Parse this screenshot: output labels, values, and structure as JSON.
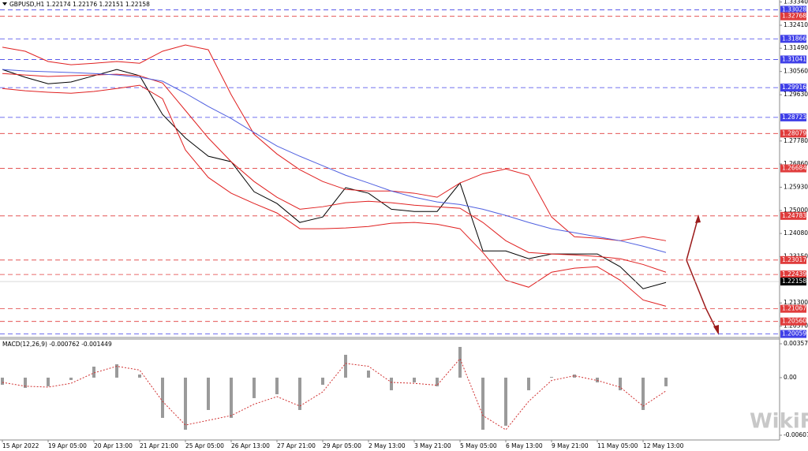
{
  "chart_data": [
    {
      "type": "line",
      "title": "GBPUSD,H1  1.22174 1.22176 1.22151 1.22158",
      "categories": [
        "15 Apr 2022",
        null,
        "19 Apr 05:00",
        null,
        "20 Apr 13:00",
        null,
        "21 Apr 21:00",
        null,
        "25 Apr 05:00",
        null,
        "26 Apr 13:00",
        null,
        "27 Apr 21:00",
        null,
        "29 Apr 05:00",
        null,
        "2 May 13:00",
        null,
        "3 May 21:00",
        null,
        "5 May 05:00",
        null,
        "6 May 13:00",
        null,
        "9 May 21:00",
        null,
        "11 May 05:00",
        null,
        "12 May 13:00",
        null
      ],
      "series": [
        {
          "color": "#000000",
          "values": [
            1.3064,
            1.3033,
            1.3007,
            1.3014,
            1.3039,
            1.3064,
            1.3039,
            1.2884,
            1.279,
            1.2717,
            1.2695,
            1.2575,
            1.2528,
            1.2452,
            1.2474,
            1.2591,
            1.2569,
            1.2505,
            1.2496,
            1.2496,
            1.261,
            1.2338,
            1.2338,
            1.2307,
            1.2326,
            1.2326,
            1.2326,
            1.2275,
            1.2187,
            1.2212
          ]
        },
        {
          "color": "#e02020",
          "values": [
            1.3153,
            1.3137,
            1.3096,
            1.3083,
            1.3089,
            1.3096,
            1.3089,
            1.3137,
            1.3162,
            1.3143,
            1.2963,
            1.2805,
            1.2726,
            1.2663,
            1.2616,
            1.2584,
            1.2578,
            1.2578,
            1.2569,
            1.2553,
            1.261,
            1.2647,
            1.2666,
            1.2641,
            1.2474,
            1.2395,
            1.2389,
            1.2379,
            1.2395,
            1.2379
          ]
        },
        {
          "color": "#e02020",
          "values": [
            1.3048,
            1.3042,
            1.3036,
            1.3039,
            1.3042,
            1.3045,
            1.3039,
            1.301,
            1.29,
            1.279,
            1.2695,
            1.2616,
            1.2553,
            1.2505,
            1.2515,
            1.2531,
            1.2537,
            1.2531,
            1.2521,
            1.2515,
            1.2509,
            1.2452,
            1.2379,
            1.2332,
            1.2326,
            1.2322,
            1.2316,
            1.2307,
            1.2284,
            1.2253
          ]
        },
        {
          "color": "#e02020",
          "values": [
            1.2988,
            1.2979,
            1.2973,
            1.2969,
            1.2976,
            1.2988,
            1.3001,
            1.2947,
            1.2742,
            1.2632,
            1.2569,
            1.2528,
            1.249,
            1.2427,
            1.2427,
            1.243,
            1.2436,
            1.2449,
            1.2452,
            1.2445,
            1.2427,
            1.2332,
            1.2221,
            1.2193,
            1.2253,
            1.2269,
            1.2275,
            1.2221,
            1.2142,
            1.2117
          ]
        },
        {
          "color": "#5060e0",
          "values": [
            1.3064,
            1.3058,
            1.3055,
            1.3052,
            1.3048,
            1.3042,
            1.3033,
            1.3017,
            1.2969,
            1.2916,
            1.2868,
            1.2812,
            1.2758,
            1.2717,
            1.2679,
            1.2641,
            1.261,
            1.2578,
            1.2553,
            1.2534,
            1.2524,
            1.2505,
            1.248,
            1.2452,
            1.2427,
            1.2411,
            1.2395,
            1.2379,
            1.2357,
            1.2332
          ]
        }
      ],
      "ylim": [
        1.1992,
        1.3342
      ],
      "yticks": [
        {
          "value": 1.3334,
          "label": "1.33340"
        },
        {
          "value": 1.3241,
          "label": "1.32410"
        },
        {
          "value": 1.3149,
          "label": "1.31490"
        },
        {
          "value": 1.3056,
          "label": "1.30560"
        },
        {
          "value": 1.2963,
          "label": "1.29630"
        },
        {
          "value": 1.2778,
          "label": "1.27780"
        },
        {
          "value": 1.2686,
          "label": "1.26860"
        },
        {
          "value": 1.2593,
          "label": "1.25930"
        },
        {
          "value": 1.25,
          "label": "1.25000"
        },
        {
          "value": 1.2408,
          "label": "1.24080"
        },
        {
          "value": 1.2315,
          "label": "1.23150"
        },
        {
          "value": 1.213,
          "label": "1.21300"
        },
        {
          "value": 1.2037,
          "label": "1.20370"
        }
      ],
      "levels": [
        {
          "value": 1.33028,
          "color": "#4040e8"
        },
        {
          "value": 1.32768,
          "color": "#e03c3c"
        },
        {
          "value": 1.31866,
          "color": "#4040e8"
        },
        {
          "value": 1.31041,
          "color": "#4040e8"
        },
        {
          "value": 1.29916,
          "color": "#4040e8"
        },
        {
          "value": 1.28723,
          "color": "#4040e8"
        },
        {
          "value": 1.28079,
          "color": "#e03c3c"
        },
        {
          "value": 1.26684,
          "color": "#e03c3c"
        },
        {
          "value": 1.24783,
          "color": "#e03c3c"
        },
        {
          "value": 1.23017,
          "color": "#e03c3c"
        },
        {
          "value": 1.22439,
          "color": "#e03c3c"
        },
        {
          "value": 1.21067,
          "color": "#e03c3c"
        },
        {
          "value": 1.2056,
          "label": "1.20560",
          "color": "#e03c3c"
        },
        {
          "value": 1.20059,
          "color": "#4040e8"
        }
      ],
      "current_price": {
        "value": 1.22158,
        "color": "#000000"
      },
      "watermark": "WikiFX"
    },
    {
      "type": "bar",
      "title": "MACD(12,26,9) -0.000762 -0.001449",
      "series": [
        {
          "color": "#9a9a9a",
          "values": [
            -0.00075,
            -0.00108,
            -0.00091,
            -0.00025,
            0.00116,
            0.00141,
            0.00033,
            -0.00424,
            -0.00549,
            -0.00341,
            -0.00424,
            -0.00216,
            -0.00175,
            -0.00341,
            -0.00075,
            0.00241,
            0.00075,
            -0.00133,
            -0.0005,
            -0.00091,
            0.00324,
            -0.00549,
            -0.00507,
            -0.00133,
            8e-05,
            0.00033,
            -0.0005,
            -0.00133,
            -0.00341,
            -0.00091
          ]
        },
        {
          "type": "line",
          "color": "#d03030",
          "values": [
            -0.0005,
            -0.0009,
            -0.001,
            -0.0006,
            0.0005,
            0.0012,
            0.0008,
            -0.0025,
            -0.005,
            -0.0045,
            -0.004,
            -0.0028,
            -0.002,
            -0.003,
            -0.0015,
            0.0015,
            0.0012,
            -0.0005,
            -0.0006,
            -0.0008,
            0.002,
            -0.004,
            -0.0055,
            -0.0025,
            -0.0003,
            0.0002,
            -0.0003,
            -0.001,
            -0.003,
            -0.0014
          ]
        }
      ],
      "ylim": [
        -0.00657,
        0.00407
      ],
      "yticks": [
        0.003572,
        {
          "value": 0,
          "label": "0.00"
        },
        -0.006072
      ]
    }
  ]
}
